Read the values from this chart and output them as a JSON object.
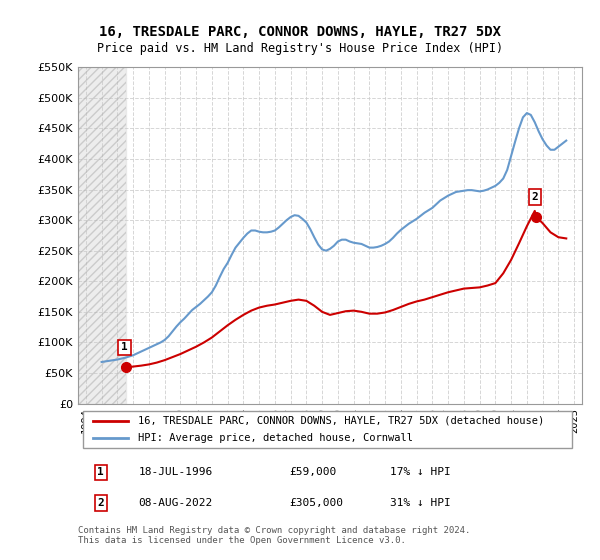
{
  "title": "16, TRESDALE PARC, CONNOR DOWNS, HAYLE, TR27 5DX",
  "subtitle": "Price paid vs. HM Land Registry's House Price Index (HPI)",
  "ylabel": "",
  "ylim": [
    0,
    550000
  ],
  "yticks": [
    0,
    50000,
    100000,
    150000,
    200000,
    250000,
    300000,
    350000,
    400000,
    450000,
    500000,
    550000
  ],
  "ytick_labels": [
    "£0",
    "£50K",
    "£100K",
    "£150K",
    "£200K",
    "£250K",
    "£300K",
    "£350K",
    "£400K",
    "£450K",
    "£500K",
    "£550K"
  ],
  "xlim_left": 1993.5,
  "xlim_right": 2025.5,
  "background_color": "#ffffff",
  "plot_bg_color": "#ffffff",
  "grid_color": "#cccccc",
  "hpi_line_color": "#6699cc",
  "price_line_color": "#cc0000",
  "sale1_x": 1996.54,
  "sale1_y": 59000,
  "sale2_x": 2022.6,
  "sale2_y": 305000,
  "sale1_label": "1",
  "sale2_label": "2",
  "legend_label1": "16, TRESDALE PARC, CONNOR DOWNS, HAYLE, TR27 5DX (detached house)",
  "legend_label2": "HPI: Average price, detached house, Cornwall",
  "table_row1": [
    "1",
    "18-JUL-1996",
    "£59,000",
    "17% ↓ HPI"
  ],
  "table_row2": [
    "2",
    "08-AUG-2022",
    "£305,000",
    "31% ↓ HPI"
  ],
  "footnote": "Contains HM Land Registry data © Crown copyright and database right 2024.\nThis data is licensed under the Open Government Licence v3.0.",
  "xtick_years": [
    1994,
    1995,
    1996,
    1997,
    1998,
    1999,
    2000,
    2001,
    2002,
    2003,
    2004,
    2005,
    2006,
    2007,
    2008,
    2009,
    2010,
    2011,
    2012,
    2013,
    2014,
    2015,
    2016,
    2017,
    2018,
    2019,
    2020,
    2021,
    2022,
    2023,
    2024,
    2025
  ],
  "hpi_data_x": [
    1995.0,
    1995.25,
    1995.5,
    1995.75,
    1996.0,
    1996.25,
    1996.5,
    1996.75,
    1997.0,
    1997.25,
    1997.5,
    1997.75,
    1998.0,
    1998.25,
    1998.5,
    1998.75,
    1999.0,
    1999.25,
    1999.5,
    1999.75,
    2000.0,
    2000.25,
    2000.5,
    2000.75,
    2001.0,
    2001.25,
    2001.5,
    2001.75,
    2002.0,
    2002.25,
    2002.5,
    2002.75,
    2003.0,
    2003.25,
    2003.5,
    2003.75,
    2004.0,
    2004.25,
    2004.5,
    2004.75,
    2005.0,
    2005.25,
    2005.5,
    2005.75,
    2006.0,
    2006.25,
    2006.5,
    2006.75,
    2007.0,
    2007.25,
    2007.5,
    2007.75,
    2008.0,
    2008.25,
    2008.5,
    2008.75,
    2009.0,
    2009.25,
    2009.5,
    2009.75,
    2010.0,
    2010.25,
    2010.5,
    2010.75,
    2011.0,
    2011.25,
    2011.5,
    2011.75,
    2012.0,
    2012.25,
    2012.5,
    2012.75,
    2013.0,
    2013.25,
    2013.5,
    2013.75,
    2014.0,
    2014.25,
    2014.5,
    2014.75,
    2015.0,
    2015.25,
    2015.5,
    2015.75,
    2016.0,
    2016.25,
    2016.5,
    2016.75,
    2017.0,
    2017.25,
    2017.5,
    2017.75,
    2018.0,
    2018.25,
    2018.5,
    2018.75,
    2019.0,
    2019.25,
    2019.5,
    2019.75,
    2020.0,
    2020.25,
    2020.5,
    2020.75,
    2021.0,
    2021.25,
    2021.5,
    2021.75,
    2022.0,
    2022.25,
    2022.5,
    2022.75,
    2023.0,
    2023.25,
    2023.5,
    2023.75,
    2024.0,
    2024.25,
    2024.5
  ],
  "hpi_data_y": [
    68000,
    69000,
    70000,
    71000,
    72000,
    73500,
    75000,
    77000,
    79000,
    82000,
    85000,
    88000,
    91000,
    94000,
    97000,
    100000,
    104000,
    110000,
    118000,
    126000,
    133000,
    139000,
    146000,
    153000,
    158000,
    163000,
    169000,
    175000,
    182000,
    193000,
    207000,
    220000,
    230000,
    243000,
    255000,
    263000,
    271000,
    278000,
    283000,
    283000,
    281000,
    280000,
    280000,
    281000,
    283000,
    288000,
    294000,
    300000,
    305000,
    308000,
    307000,
    302000,
    296000,
    285000,
    272000,
    260000,
    252000,
    250000,
    253000,
    258000,
    265000,
    268000,
    268000,
    265000,
    263000,
    262000,
    261000,
    258000,
    255000,
    255000,
    256000,
    258000,
    261000,
    265000,
    271000,
    278000,
    284000,
    289000,
    294000,
    298000,
    302000,
    307000,
    312000,
    316000,
    320000,
    326000,
    332000,
    336000,
    340000,
    343000,
    346000,
    347000,
    348000,
    349000,
    349000,
    348000,
    347000,
    348000,
    350000,
    353000,
    356000,
    361000,
    368000,
    382000,
    405000,
    428000,
    450000,
    468000,
    475000,
    472000,
    460000,
    445000,
    432000,
    422000,
    415000,
    415000,
    420000,
    425000,
    430000
  ],
  "price_data_x": [
    1996.54,
    1997.0,
    1997.5,
    1998.0,
    1998.5,
    1999.0,
    1999.5,
    2000.0,
    2000.5,
    2001.0,
    2001.5,
    2002.0,
    2002.5,
    2003.0,
    2003.5,
    2004.0,
    2004.5,
    2005.0,
    2005.5,
    2006.0,
    2006.5,
    2007.0,
    2007.5,
    2008.0,
    2008.5,
    2009.0,
    2009.5,
    2010.0,
    2010.5,
    2011.0,
    2011.5,
    2012.0,
    2012.5,
    2013.0,
    2013.5,
    2014.0,
    2014.5,
    2015.0,
    2015.5,
    2016.0,
    2016.5,
    2017.0,
    2017.5,
    2018.0,
    2018.5,
    2019.0,
    2019.5,
    2020.0,
    2020.5,
    2021.0,
    2021.5,
    2022.0,
    2022.5,
    2022.6,
    2023.0,
    2023.5,
    2024.0,
    2024.5
  ],
  "price_data_y": [
    59000,
    60500,
    62000,
    64000,
    67000,
    71000,
    76000,
    81000,
    87000,
    93000,
    100000,
    108000,
    118000,
    128000,
    137000,
    145000,
    152000,
    157000,
    160000,
    162000,
    165000,
    168000,
    170000,
    168000,
    160000,
    150000,
    145000,
    148000,
    151000,
    152000,
    150000,
    147000,
    147000,
    149000,
    153000,
    158000,
    163000,
    167000,
    170000,
    174000,
    178000,
    182000,
    185000,
    188000,
    189000,
    190000,
    193000,
    197000,
    213000,
    235000,
    262000,
    290000,
    315000,
    305000,
    295000,
    280000,
    272000,
    270000
  ]
}
